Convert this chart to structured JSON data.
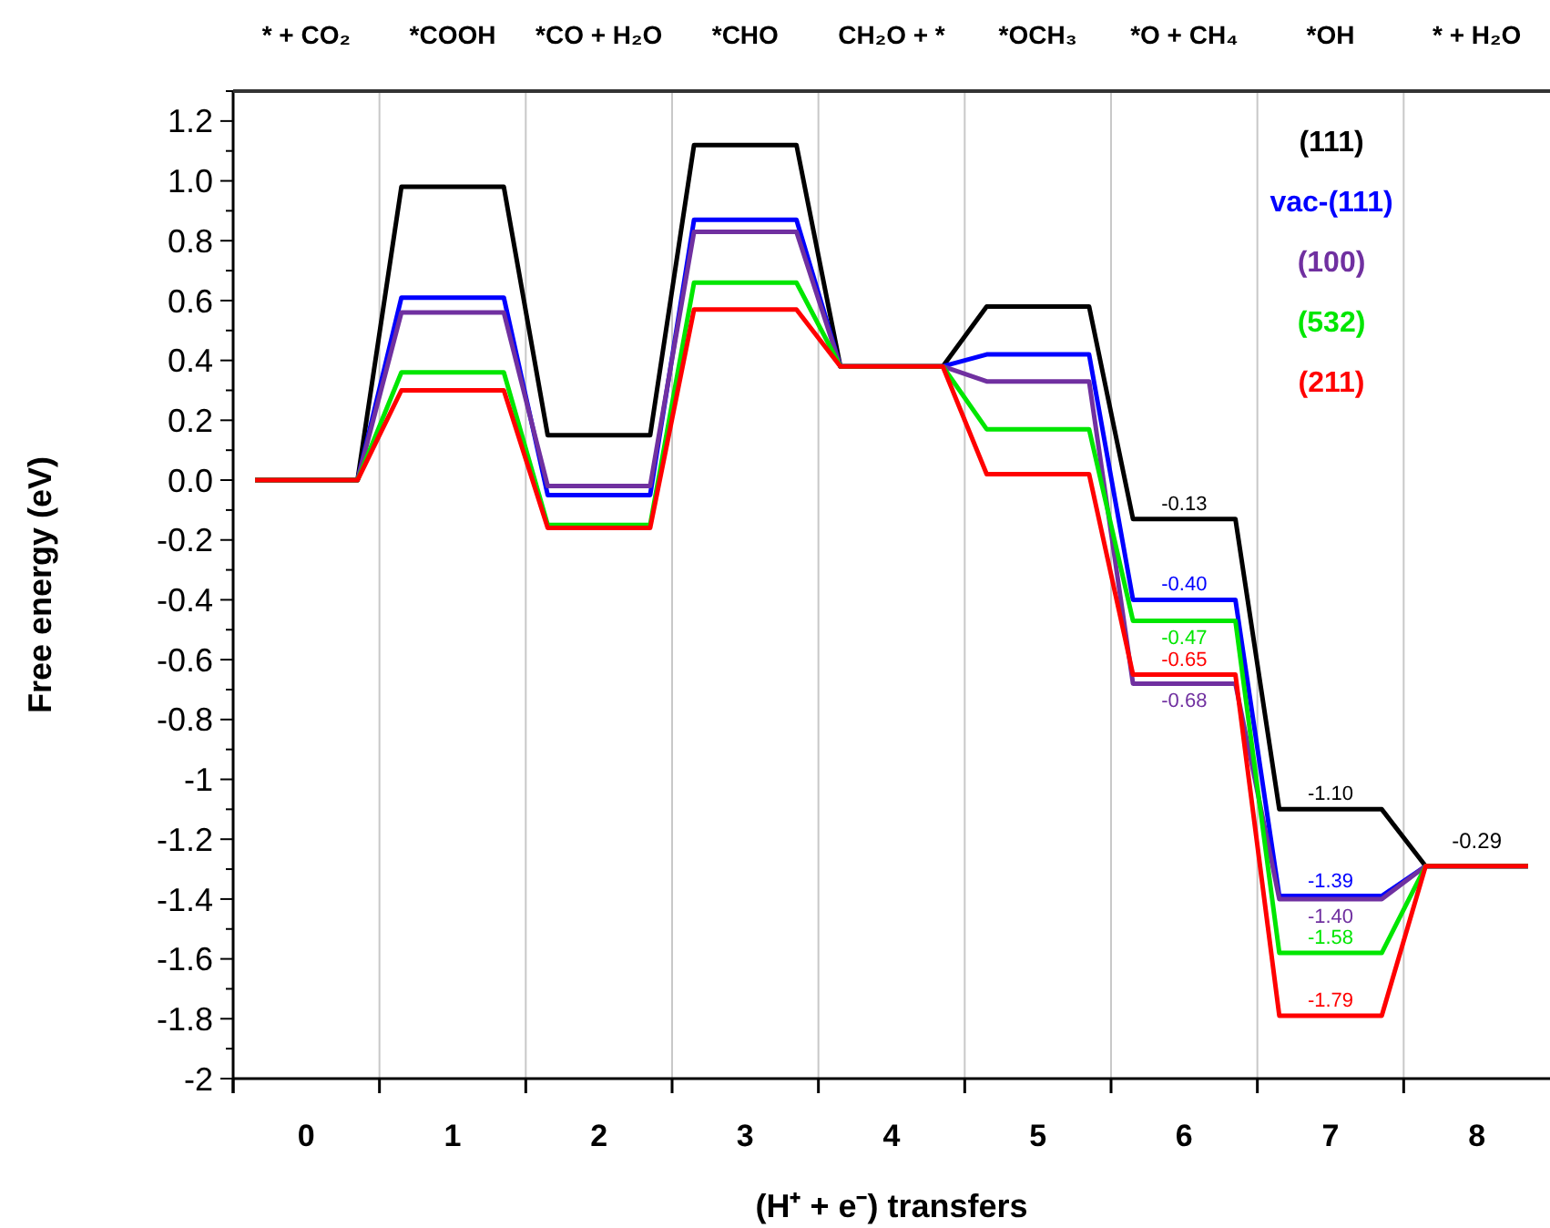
{
  "chart_data": {
    "type": "line",
    "xlabel": "(H⁺ + e⁻) transfers",
    "ylabel": "Free energy (eV)",
    "xlim": [
      -0.5,
      8.5
    ],
    "xticks": [
      {
        "value": -0.5,
        "label": null
      },
      0,
      {
        "value": 0.5,
        "label": null
      },
      1,
      {
        "value": 1.5,
        "label": null
      },
      2,
      {
        "value": 2.5,
        "label": null
      },
      3,
      {
        "value": 3.5,
        "label": null
      },
      4,
      {
        "value": 4.5,
        "label": null
      },
      5,
      {
        "value": 5.5,
        "label": null
      },
      6,
      {
        "value": 6.5,
        "label": null
      },
      7,
      {
        "value": 7.5,
        "label": null
      },
      8
    ],
    "ylim": [
      -2.0,
      1.3
    ],
    "yticks": [
      -2.0,
      {
        "value": -1.9,
        "label": null
      },
      -1.8,
      {
        "value": -1.7,
        "label": null
      },
      -1.6,
      {
        "value": -1.5,
        "label": null
      },
      -1.4,
      {
        "value": -1.3,
        "label": null
      },
      -1.2,
      {
        "value": -1.1,
        "label": null
      },
      -1.0,
      {
        "value": -0.9,
        "label": null
      },
      -0.8,
      {
        "value": -0.7,
        "label": null
      },
      -0.6,
      {
        "value": -0.5,
        "label": null
      },
      -0.4,
      {
        "value": -0.3,
        "label": null
      },
      -0.2,
      {
        "value": -0.1,
        "label": null
      },
      {
        "value": 0,
        "label": "0.0"
      },
      {
        "value": 0.1,
        "label": null
      },
      0.2,
      {
        "value": 0.3,
        "label": null
      },
      0.4,
      {
        "value": 0.5,
        "label": null
      },
      0.6,
      {
        "value": 0.7,
        "label": null
      },
      0.8,
      {
        "value": 0.9,
        "label": null
      },
      {
        "value": 1.0,
        "label": "1.0"
      },
      {
        "value": 1.1,
        "label": null
      },
      1.2,
      {
        "value": 1.3,
        "label": null
      }
    ],
    "grid": "x",
    "legend": "top right",
    "marker": "none",
    "line_style": "solid",
    "series": [
      {
        "name": "(111)",
        "color": "#000000",
        "x": [
          -0.35,
          0.35,
          0.65,
          1.35,
          1.65,
          2.35,
          2.65,
          3.35,
          3.65,
          4.35,
          4.65,
          5.35,
          5.65,
          6.35,
          6.65,
          7.35,
          7.65,
          8.35
        ],
        "values": [
          0,
          0,
          0.98,
          0.98,
          0.15,
          0.15,
          1.12,
          1.12,
          0.38,
          0.38,
          0.58,
          0.58,
          -0.13,
          -0.13,
          -1.1,
          -1.1,
          -1.29,
          -1.29
        ],
        "value_labels": [
          null,
          null,
          null,
          null,
          null,
          null,
          null,
          null,
          null,
          null,
          null,
          null,
          "-0.13",
          null,
          "-1.10",
          null,
          null,
          null
        ]
      },
      {
        "name": "vac-(111)",
        "color": "#0000ff",
        "x": [
          -0.35,
          0.35,
          0.65,
          1.35,
          1.65,
          2.35,
          2.65,
          3.35,
          3.65,
          4.35,
          4.65,
          5.35,
          5.65,
          6.35,
          6.65,
          7.35,
          7.65,
          8.35
        ],
        "values": [
          0,
          0,
          0.61,
          0.61,
          -0.05,
          -0.05,
          0.87,
          0.87,
          0.38,
          0.38,
          0.42,
          0.42,
          -0.4,
          -0.4,
          -1.39,
          -1.39,
          -1.29,
          -1.29
        ],
        "value_labels": [
          null,
          null,
          null,
          null,
          null,
          null,
          null,
          null,
          null,
          null,
          null,
          null,
          "-0.40",
          null,
          "-1.39",
          null,
          null,
          null
        ]
      },
      {
        "name": "(100)",
        "color": "#7030a0",
        "x": [
          -0.35,
          0.35,
          0.65,
          1.35,
          1.65,
          2.35,
          2.65,
          3.35,
          3.65,
          4.35,
          4.65,
          5.35,
          5.65,
          6.35,
          6.65,
          7.35,
          7.65,
          8.35
        ],
        "values": [
          0,
          0,
          0.56,
          0.56,
          -0.02,
          -0.02,
          0.83,
          0.83,
          0.38,
          0.38,
          0.33,
          0.33,
          -0.68,
          -0.68,
          -1.4,
          -1.4,
          -1.29,
          -1.29
        ],
        "value_labels": [
          null,
          null,
          null,
          null,
          null,
          null,
          null,
          null,
          null,
          null,
          null,
          null,
          "-0.68",
          null,
          "-1.40",
          null,
          null,
          null
        ]
      },
      {
        "name": "(532)",
        "color": "#00e600",
        "x": [
          -0.35,
          0.35,
          0.65,
          1.35,
          1.65,
          2.35,
          2.65,
          3.35,
          3.65,
          4.35,
          4.65,
          5.35,
          5.65,
          6.35,
          6.65,
          7.35,
          7.65,
          8.35
        ],
        "values": [
          0,
          0,
          0.36,
          0.36,
          -0.15,
          -0.15,
          0.66,
          0.66,
          0.38,
          0.38,
          0.17,
          0.17,
          -0.47,
          -0.47,
          -1.58,
          -1.58,
          -1.29,
          -1.29
        ],
        "value_labels": [
          null,
          null,
          null,
          null,
          null,
          null,
          null,
          null,
          null,
          null,
          null,
          null,
          "-0.47",
          null,
          "-1.58",
          null,
          null,
          null
        ]
      },
      {
        "name": "(211)",
        "color": "#ff0000",
        "x": [
          -0.35,
          0.35,
          0.65,
          1.35,
          1.65,
          2.35,
          2.65,
          3.35,
          3.65,
          4.35,
          4.65,
          5.35,
          5.65,
          6.35,
          6.65,
          7.35,
          7.65,
          8.35
        ],
        "values": [
          0,
          0,
          0.3,
          0.3,
          -0.16,
          -0.16,
          0.57,
          0.57,
          0.38,
          0.38,
          0.02,
          0.02,
          -0.65,
          -0.65,
          -1.79,
          -1.79,
          -1.29,
          -1.29
        ],
        "value_labels": [
          null,
          null,
          null,
          null,
          null,
          null,
          null,
          null,
          null,
          null,
          null,
          null,
          "-0.65",
          null,
          "-1.79",
          null,
          null,
          null
        ]
      }
    ],
    "annotations": [
      "* + CO₂",
      "*COOH",
      "*CO + H₂O",
      "*CHO",
      "CH₂O + *",
      "*OCH₃",
      "*O + CH₄",
      "*OH",
      "* + H₂O",
      {
        "text": "-0.29",
        "x": 8,
        "y": -1.29
      }
    ]
  }
}
